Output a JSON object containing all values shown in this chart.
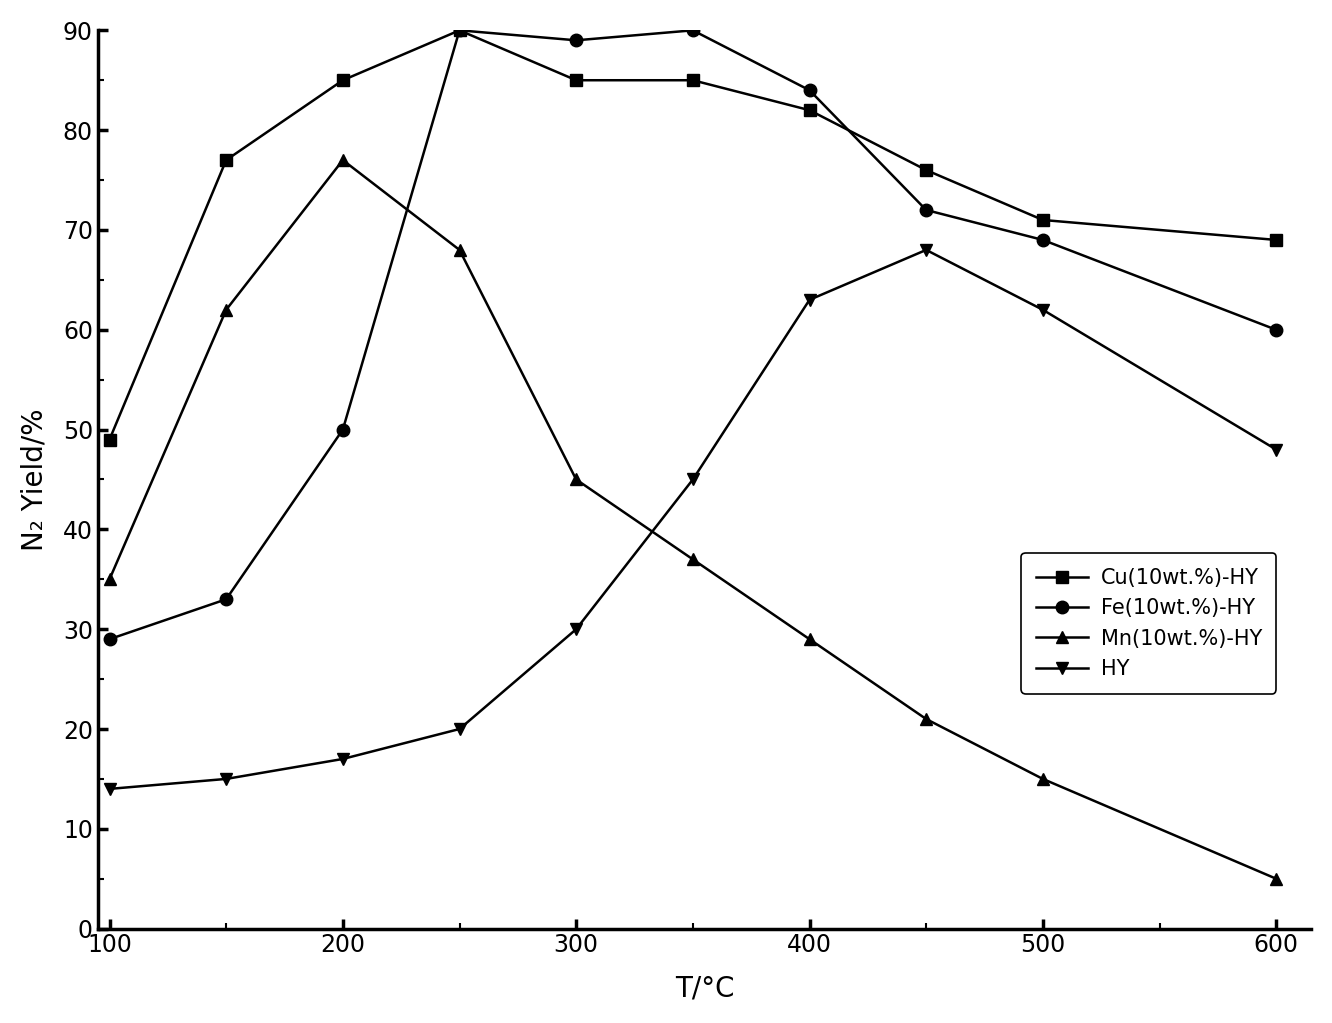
{
  "x": [
    100,
    150,
    200,
    250,
    300,
    350,
    400,
    450,
    500,
    600
  ],
  "Cu_HY": [
    49,
    77,
    85,
    90,
    85,
    85,
    82,
    76,
    71,
    69
  ],
  "Fe_HY": [
    29,
    33,
    50,
    90,
    89,
    90,
    84,
    72,
    69,
    60
  ],
  "Mn_HY": [
    35,
    62,
    77,
    68,
    45,
    37,
    29,
    21,
    15,
    5
  ],
  "HY": [
    14,
    15,
    17,
    20,
    30,
    45,
    63,
    68,
    62,
    48
  ],
  "xlabel": "T/°C",
  "ylabel": "N₂ Yield/%",
  "legend": [
    "Cu(10wt.%)-HY",
    "Fe(10wt.%)-HY",
    "Mn(10wt.%)-HY",
    "HY"
  ],
  "xlim": [
    95,
    615
  ],
  "ylim": [
    0,
    90
  ],
  "xticks_major": [
    100,
    200,
    300,
    400,
    500,
    600
  ],
  "yticks_major": [
    0,
    10,
    20,
    30,
    40,
    50,
    60,
    70,
    80,
    90
  ],
  "color": "#000000",
  "linewidth": 1.8,
  "markersize": 9,
  "spine_linewidth": 2.5,
  "xlabel_fontsize": 20,
  "ylabel_fontsize": 20,
  "tick_labelsize": 17,
  "legend_fontsize": 15
}
